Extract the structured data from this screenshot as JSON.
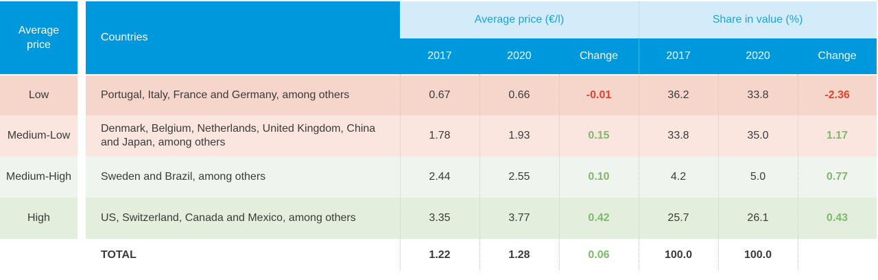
{
  "header": {
    "average_price": "Average price",
    "countries": "Countries",
    "group_avg_price": "Average price (€/l)",
    "group_share": "Share in value (%)",
    "col_2017_a": "2017",
    "col_2020_a": "2020",
    "col_change_a": "Change",
    "col_2017_b": "2017",
    "col_2020_b": "2020",
    "col_change_b": "Change"
  },
  "rows": [
    {
      "tier": "Low",
      "countries": "Portugal, Italy, France and Germany, among others",
      "p2017": "0.67",
      "p2020": "0.66",
      "pchange": "-0.01",
      "s2017": "36.2",
      "s2020": "33.8",
      "schange": "-2.36",
      "color": "#f6d5cb"
    },
    {
      "tier": "Medium-Low",
      "countries": "Denmark, Belgium, Netherlands, United Kingdom, China and Japan, among others",
      "p2017": "1.78",
      "p2020": "1.93",
      "pchange": "0.15",
      "s2017": "33.8",
      "s2020": "35.0",
      "schange": "1.17",
      "color": "#fbe6df"
    },
    {
      "tier": "Medium-High",
      "countries": "Sweden and Brazil, among others",
      "p2017": "2.44",
      "p2020": "2.55",
      "pchange": "0.10",
      "s2017": "4.2",
      "s2020": "5.0",
      "schange": "0.77",
      "color": "#f0f4ee"
    },
    {
      "tier": "High",
      "countries": "US, Switzerland, Canada and Mexico, among others",
      "p2017": "3.35",
      "p2020": "3.77",
      "pchange": "0.42",
      "s2017": "25.7",
      "s2020": "26.1",
      "schange": "0.43",
      "color": "#e3eedd"
    }
  ],
  "total": {
    "label": "TOTAL",
    "p2017": "1.22",
    "p2020": "1.28",
    "pchange": "0.06",
    "s2017": "100.0",
    "s2020": "100.0"
  }
}
